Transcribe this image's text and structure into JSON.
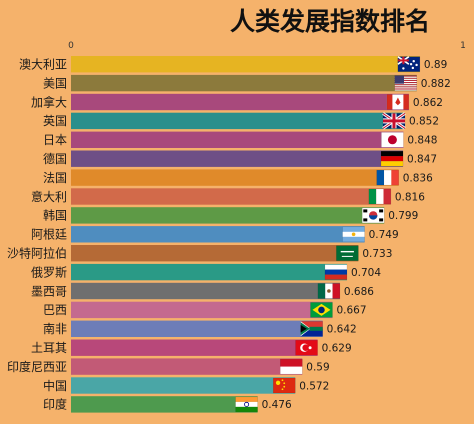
{
  "chart_data": {
    "type": "bar",
    "orientation": "horizontal",
    "title": "人类发展指数排名",
    "xlim": [
      0,
      1
    ],
    "x_ticks": [
      "0",
      "1"
    ],
    "grid": false,
    "legend": "none",
    "colors": {
      "background": "#f5b26b",
      "title": "#111111",
      "text": "#1a1a1a"
    },
    "categories": [
      "澳大利亚",
      "美国",
      "加拿大",
      "英国",
      "日本",
      "德国",
      "法国",
      "意大利",
      "韩国",
      "阿根廷",
      "沙特阿拉伯",
      "俄罗斯",
      "墨西哥",
      "巴西",
      "南非",
      "土耳其",
      "印度尼西亚",
      "中国",
      "印度"
    ],
    "values": [
      0.89,
      0.882,
      0.862,
      0.852,
      0.848,
      0.847,
      0.836,
      0.816,
      0.799,
      0.749,
      0.733,
      0.704,
      0.686,
      0.667,
      0.642,
      0.629,
      0.59,
      0.572,
      0.476
    ],
    "value_labels": [
      "0.89",
      "0.882",
      "0.862",
      "0.852",
      "0.848",
      "0.847",
      "0.836",
      "0.816",
      "0.799",
      "0.749",
      "0.733",
      "0.704",
      "0.686",
      "0.667",
      "0.642",
      "0.629",
      "0.59",
      "0.572",
      "0.476"
    ],
    "bar_colors": [
      "#e6b422",
      "#8c7a3c",
      "#a8497c",
      "#2a8f8c",
      "#a8497c",
      "#6e4f86",
      "#e08a2a",
      "#d26a4a",
      "#5e9a46",
      "#4f8dbf",
      "#b56a36",
      "#2a9a86",
      "#6f6f6f",
      "#c46a8f",
      "#6d7db8",
      "#b8487a",
      "#c25a76",
      "#4aa6a6",
      "#4e9a4e"
    ],
    "flags": [
      "australia-flag",
      "usa-flag",
      "canada-flag",
      "uk-flag",
      "japan-flag",
      "germany-flag",
      "france-flag",
      "italy-flag",
      "korea-flag",
      "argentina-flag",
      "saudi-arabia-flag",
      "russia-flag",
      "mexico-flag",
      "brazil-flag",
      "south-africa-flag",
      "turkey-flag",
      "indonesia-flag",
      "china-flag",
      "india-flag"
    ]
  }
}
